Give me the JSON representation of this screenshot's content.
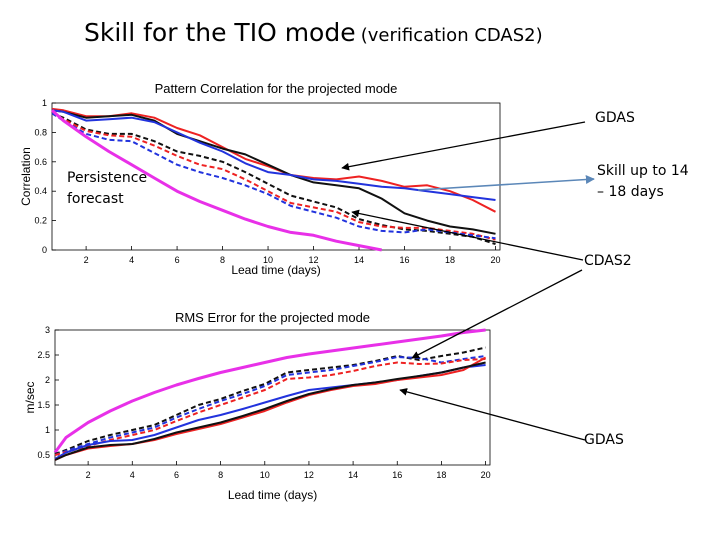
{
  "slide": {
    "title_main": "Skill for the TIO mode",
    "title_sub": "(verification CDAS2)"
  },
  "callouts": {
    "persistence_line1": "Persistence",
    "persistence_line2": "forecast",
    "gdas_top": "GDAS",
    "skill_line1": "Skill up to 14",
    "skill_line2": "– 18 days",
    "cdas2": "CDAS2",
    "gdas_bottom": "GDAS"
  },
  "colors": {
    "red": "#ee2222",
    "black": "#111111",
    "blue": "#2233dd",
    "magenta": "#e830e8",
    "arrow_gray": "#5b87b8"
  },
  "chart_data": [
    {
      "type": "line",
      "title": "Pattern Correlation for the projected mode",
      "xlabel": "Lead time (days)",
      "ylabel": "Correlation",
      "xlim": [
        0.5,
        20.2
      ],
      "ylim": [
        0,
        1
      ],
      "xticks": [
        2,
        4,
        6,
        8,
        10,
        12,
        14,
        16,
        18,
        20
      ],
      "yticks": [
        0,
        0.2,
        0.4,
        0.6,
        0.8,
        1
      ],
      "ytick_labels": [
        "0",
        "0.2",
        "0.4",
        "0.6",
        "0.8",
        "1"
      ],
      "grid": false,
      "series": [
        {
          "color": "red",
          "style": "solid",
          "x": [
            0.5,
            1,
            2,
            3,
            4,
            5,
            6,
            7,
            8,
            9,
            10,
            11,
            12,
            13,
            14,
            15,
            16,
            17,
            18,
            19,
            20
          ],
          "y": [
            0.96,
            0.95,
            0.91,
            0.91,
            0.93,
            0.9,
            0.83,
            0.78,
            0.7,
            0.62,
            0.57,
            0.51,
            0.49,
            0.48,
            0.5,
            0.47,
            0.43,
            0.44,
            0.4,
            0.34,
            0.26
          ]
        },
        {
          "color": "black",
          "style": "solid",
          "x": [
            0.5,
            1,
            2,
            3,
            4,
            5,
            6,
            7,
            8,
            9,
            10,
            11,
            12,
            13,
            14,
            15,
            16,
            17,
            18,
            19,
            20
          ],
          "y": [
            0.95,
            0.94,
            0.9,
            0.91,
            0.92,
            0.88,
            0.79,
            0.74,
            0.69,
            0.65,
            0.58,
            0.51,
            0.46,
            0.44,
            0.42,
            0.35,
            0.25,
            0.2,
            0.16,
            0.14,
            0.11
          ]
        },
        {
          "color": "blue",
          "style": "solid",
          "x": [
            0.5,
            1,
            2,
            3,
            4,
            5,
            6,
            7,
            8,
            9,
            10,
            11,
            12,
            13,
            14,
            15,
            16,
            17,
            18,
            19,
            20
          ],
          "y": [
            0.95,
            0.94,
            0.88,
            0.89,
            0.9,
            0.87,
            0.8,
            0.73,
            0.67,
            0.59,
            0.53,
            0.51,
            0.48,
            0.47,
            0.45,
            0.43,
            0.42,
            0.4,
            0.38,
            0.36,
            0.34
          ]
        },
        {
          "color": "black",
          "style": "dashed",
          "x": [
            0.5,
            1,
            2,
            3,
            4,
            5,
            6,
            7,
            8,
            9,
            10,
            11,
            12,
            13,
            14,
            15,
            16,
            17,
            18,
            19,
            20
          ],
          "y": [
            0.93,
            0.9,
            0.82,
            0.79,
            0.79,
            0.74,
            0.67,
            0.64,
            0.6,
            0.53,
            0.45,
            0.37,
            0.33,
            0.29,
            0.21,
            0.17,
            0.14,
            0.13,
            0.11,
            0.09,
            0.04
          ]
        },
        {
          "color": "red",
          "style": "dashed",
          "x": [
            0.5,
            1,
            2,
            3,
            4,
            5,
            6,
            7,
            8,
            9,
            10,
            11,
            12,
            13,
            14,
            15,
            16,
            17,
            18,
            19,
            20
          ],
          "y": [
            0.93,
            0.89,
            0.81,
            0.78,
            0.77,
            0.71,
            0.64,
            0.58,
            0.55,
            0.48,
            0.4,
            0.32,
            0.29,
            0.26,
            0.19,
            0.16,
            0.15,
            0.15,
            0.13,
            0.11,
            0.07
          ]
        },
        {
          "color": "blue",
          "style": "dashed",
          "x": [
            0.5,
            1,
            2,
            3,
            4,
            5,
            6,
            7,
            8,
            9,
            10,
            11,
            12,
            13,
            14,
            15,
            16,
            17,
            18,
            19,
            20
          ],
          "y": [
            0.93,
            0.88,
            0.79,
            0.75,
            0.74,
            0.66,
            0.58,
            0.53,
            0.49,
            0.44,
            0.38,
            0.3,
            0.26,
            0.22,
            0.16,
            0.13,
            0.12,
            0.14,
            0.12,
            0.1,
            0.08
          ]
        },
        {
          "color": "magenta",
          "style": "solid",
          "x": [
            0.5,
            1,
            2,
            3,
            4,
            5,
            6,
            7,
            8,
            9,
            10,
            11,
            12,
            13,
            14,
            15
          ],
          "y": [
            0.95,
            0.88,
            0.77,
            0.67,
            0.58,
            0.49,
            0.4,
            0.33,
            0.27,
            0.21,
            0.16,
            0.12,
            0.1,
            0.06,
            0.03,
            0.0
          ]
        }
      ]
    },
    {
      "type": "line",
      "title": "RMS Error for the projected mode",
      "xlabel": "Lead time (days)",
      "ylabel": "m/sec",
      "xlim": [
        0.5,
        20.2
      ],
      "ylim": [
        0.3,
        3
      ],
      "xticks": [
        2,
        4,
        6,
        8,
        10,
        12,
        14,
        16,
        18,
        20
      ],
      "yticks": [
        0.5,
        1,
        1.5,
        2,
        2.5,
        3
      ],
      "ytick_labels": [
        "0.5",
        "1",
        "1.5",
        "2",
        "2.5",
        "3"
      ],
      "grid": false,
      "series": [
        {
          "color": "magenta",
          "style": "solid",
          "x": [
            0.5,
            1,
            2,
            3,
            4,
            5,
            6,
            7,
            8,
            9,
            10,
            11,
            12,
            13,
            14,
            15,
            16,
            17,
            18,
            19,
            20
          ],
          "y": [
            0.55,
            0.85,
            1.15,
            1.38,
            1.58,
            1.75,
            1.9,
            2.03,
            2.15,
            2.25,
            2.35,
            2.45,
            2.52,
            2.58,
            2.64,
            2.7,
            2.76,
            2.82,
            2.88,
            2.95,
            3.0
          ]
        },
        {
          "color": "black",
          "style": "dashed",
          "x": [
            0.5,
            1,
            2,
            3,
            4,
            5,
            6,
            7,
            8,
            9,
            10,
            11,
            12,
            13,
            14,
            15,
            16,
            17,
            18,
            19,
            20
          ],
          "y": [
            0.52,
            0.6,
            0.78,
            0.9,
            1.0,
            1.1,
            1.3,
            1.5,
            1.62,
            1.78,
            1.92,
            2.15,
            2.2,
            2.25,
            2.3,
            2.38,
            2.48,
            2.4,
            2.48,
            2.55,
            2.65
          ]
        },
        {
          "color": "blue",
          "style": "dashed",
          "x": [
            0.5,
            1,
            2,
            3,
            4,
            5,
            6,
            7,
            8,
            9,
            10,
            11,
            12,
            13,
            14,
            15,
            16,
            17,
            18,
            19,
            20
          ],
          "y": [
            0.5,
            0.58,
            0.72,
            0.85,
            0.95,
            1.05,
            1.25,
            1.42,
            1.58,
            1.72,
            1.88,
            2.1,
            2.15,
            2.2,
            2.28,
            2.36,
            2.46,
            2.44,
            2.35,
            2.42,
            2.48
          ]
        },
        {
          "color": "red",
          "style": "dashed",
          "x": [
            0.5,
            1,
            2,
            3,
            4,
            5,
            6,
            7,
            8,
            9,
            10,
            11,
            12,
            13,
            14,
            15,
            16,
            17,
            18,
            19,
            20
          ],
          "y": [
            0.5,
            0.56,
            0.68,
            0.8,
            0.9,
            1.0,
            1.18,
            1.35,
            1.5,
            1.65,
            1.8,
            2.02,
            2.05,
            2.1,
            2.18,
            2.28,
            2.35,
            2.32,
            2.33,
            2.4,
            2.42
          ]
        },
        {
          "color": "blue",
          "style": "solid",
          "x": [
            0.5,
            1,
            2,
            3,
            4,
            5,
            6,
            7,
            8,
            9,
            10,
            11,
            12,
            13,
            14,
            15,
            16,
            17,
            18,
            19,
            20
          ],
          "y": [
            0.42,
            0.55,
            0.7,
            0.78,
            0.8,
            0.9,
            1.05,
            1.2,
            1.3,
            1.42,
            1.55,
            1.68,
            1.8,
            1.85,
            1.9,
            1.95,
            2.0,
            2.08,
            2.15,
            2.25,
            2.3
          ]
        },
        {
          "color": "red",
          "style": "solid",
          "x": [
            0.5,
            1,
            2,
            3,
            4,
            5,
            6,
            7,
            8,
            9,
            10,
            11,
            12,
            13,
            14,
            15,
            16,
            17,
            18,
            19,
            20
          ],
          "y": [
            0.4,
            0.5,
            0.63,
            0.68,
            0.72,
            0.8,
            0.92,
            1.02,
            1.12,
            1.25,
            1.38,
            1.55,
            1.7,
            1.8,
            1.88,
            1.92,
            2.0,
            2.05,
            2.1,
            2.2,
            2.45
          ]
        },
        {
          "color": "black",
          "style": "solid",
          "x": [
            0.5,
            1,
            2,
            3,
            4,
            5,
            6,
            7,
            8,
            9,
            10,
            11,
            12,
            13,
            14,
            15,
            16,
            17,
            18,
            19,
            20
          ],
          "y": [
            0.4,
            0.5,
            0.65,
            0.7,
            0.72,
            0.82,
            0.95,
            1.05,
            1.15,
            1.28,
            1.42,
            1.58,
            1.72,
            1.82,
            1.9,
            1.95,
            2.02,
            2.08,
            2.15,
            2.25,
            2.35
          ]
        }
      ]
    }
  ]
}
